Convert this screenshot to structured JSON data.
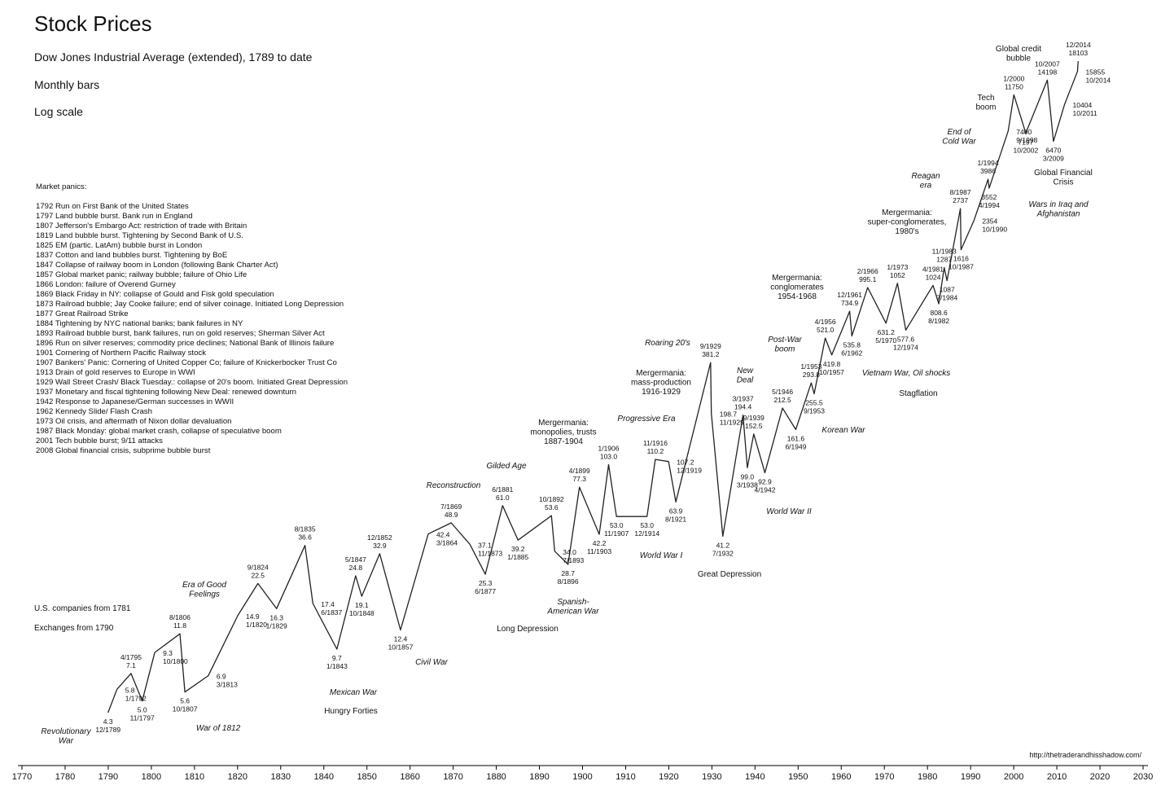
{
  "chart_data": {
    "type": "line",
    "title": "Stock Prices",
    "subtitle": "Dow Jones Industrial Average (extended), 1789 to date",
    "notes": [
      "Monthly bars",
      "Log scale"
    ],
    "log_scale": true,
    "color": "#222222",
    "xlim": [
      1770,
      2030
    ],
    "xticks": [
      1770,
      1780,
      1790,
      1800,
      1810,
      1820,
      1830,
      1840,
      1850,
      1860,
      1870,
      1880,
      1890,
      1900,
      1910,
      1920,
      1930,
      1940,
      1950,
      1960,
      1970,
      1980,
      1990,
      2000,
      2010,
      2020,
      2030
    ],
    "ylim": [
      2.3,
      23500
    ],
    "x": [
      1789.96,
      1792.04,
      1795.29,
      1797.88,
      1800.79,
      1806.63,
      1807.79,
      1813.21,
      1820.04,
      1824.71,
      1829.04,
      1835.63,
      1837.46,
      1843.04,
      1847.38,
      1848.79,
      1852.96,
      1857.79,
      1864.21,
      1869.54,
      1873.88,
      1877.46,
      1881.46,
      1885.04,
      1892.79,
      1893.54,
      1896.63,
      1899.29,
      1903.88,
      1906.04,
      1907.88,
      1914.96,
      1916.88,
      1919.96,
      1921.63,
      1929.71,
      1929.88,
      1932.54,
      1937.21,
      1938.21,
      1939.71,
      1942.29,
      1946.38,
      1949.46,
      1953.04,
      1953.71,
      1956.29,
      1957.79,
      1961.96,
      1962.46,
      1966.13,
      1970.38,
      1973.04,
      1974.96,
      1981.29,
      1982.63,
      1983.88,
      1984.54,
      1987.63,
      1987.79,
      1990.79,
      1994.04,
      1994.29,
      1998.71,
      2000.04,
      2002.79,
      2007.79,
      2009.21,
      2011.79,
      2014.79,
      2014.96
    ],
    "values": [
      4.3,
      5.8,
      7.1,
      5.0,
      9.3,
      11.8,
      5.6,
      6.9,
      14.9,
      22.5,
      16.3,
      36.6,
      17.4,
      9.7,
      24.8,
      19.1,
      32.9,
      12.4,
      42.4,
      48.9,
      37.1,
      25.3,
      61.0,
      39.2,
      53.6,
      34.0,
      28.7,
      77.3,
      42.2,
      103.0,
      53.0,
      53.0,
      110.2,
      107.2,
      63.9,
      381.2,
      198.7,
      41.2,
      194.4,
      99.0,
      152.5,
      92.9,
      212.5,
      161.6,
      293.8,
      255.5,
      521.0,
      419.8,
      734.9,
      535.8,
      995.1,
      631.2,
      1052,
      577.6,
      1024,
      808.6,
      1287,
      1087,
      2737,
      1616,
      2354,
      3986,
      3552,
      7400,
      11750,
      7197,
      14198,
      6470,
      10404,
      15855,
      18103
    ],
    "value_labels": [
      "4.3",
      "5.8",
      "7.1",
      "5.0",
      "9.3",
      "11.8",
      "5.6",
      "6.9",
      "14.9",
      "22.5",
      "16.3",
      "36.6",
      "17.4",
      "9.7",
      "24.8",
      "19.1",
      "32.9",
      "12.4",
      "42.4",
      "48.9",
      "37.1",
      "25.3",
      "61.0",
      "39.2",
      "53.6",
      "34.0",
      "28.7",
      "77.3",
      "42.2",
      "103.0",
      "53.0",
      "53.0",
      "110.2",
      "107.2",
      "63.9",
      "381.2",
      "198.7",
      "41.2",
      "194.4",
      "99.0",
      "152.5",
      "92.9",
      "212.5",
      "161.6",
      "293.8",
      "255.5",
      "521.0",
      "419.8",
      "734.9",
      "535.8",
      "995.1",
      "631.2",
      "1052",
      "577.6",
      "1024",
      "808.6",
      "1287",
      "1087",
      "2737",
      "1616",
      "2354",
      "3986",
      "3552",
      "7400",
      "11750",
      "7197",
      "14198",
      "6470",
      "10404",
      "15855",
      "18103"
    ],
    "date_labels": [
      "12/1789",
      "1/1792",
      "4/1795",
      "11/1797",
      "10/1800",
      "8/1806",
      "10/1807",
      "3/1813",
      "1/1820",
      "9/1824",
      "1/1829",
      "8/1835",
      "6/1837",
      "1/1843",
      "5/1847",
      "10/1848",
      "12/1852",
      "10/1857",
      "3/1864",
      "7/1869",
      "11/1873",
      "6/1877",
      "6/1881",
      "1/1885",
      "10/1892",
      "7/1893",
      "8/1896",
      "4/1899",
      "11/1903",
      "1/1906",
      "11/1907",
      "12/1914",
      "11/1916",
      "12/1919",
      "8/1921",
      "9/1929",
      "11/1929",
      "7/1932",
      "3/1937",
      "3/1938",
      "9/1939",
      "4/1942",
      "5/1946",
      "6/1949",
      "1/1953",
      "9/1953",
      "4/1956",
      "10/1957",
      "12/1961",
      "6/1962",
      "2/1966",
      "5/1970",
      "1/1973",
      "12/1974",
      "4/1981",
      "8/1982",
      "11/1983",
      "7/1984",
      "8/1987",
      "10/1987",
      "10/1990",
      "1/1994",
      "4/1994",
      "9/1998",
      "1/2000",
      "10/2002",
      "10/2007",
      "3/2009",
      "10/2011",
      "10/2014",
      "12/2014"
    ],
    "annotations_italic": [
      [
        "Revolutionary",
        "War"
      ],
      [
        "War of 1812"
      ],
      [
        "Era of Good",
        "Feelings"
      ],
      [
        "Mexican War"
      ],
      [
        "Civil War"
      ],
      [
        "Reconstruction"
      ],
      [
        "Gilded Age"
      ],
      [
        "Spanish-",
        "American War"
      ],
      [
        "World War I"
      ],
      [
        "Progressive Era"
      ],
      [
        "Roaring 20's"
      ],
      [
        "New",
        "Deal"
      ],
      [
        "World War II"
      ],
      [
        "Post-War",
        "boom"
      ],
      [
        "Korean War"
      ],
      [
        "Vietnam War, Oil shocks"
      ],
      [
        "Reagan",
        "era"
      ],
      [
        "End of",
        "Cold War"
      ],
      [
        "Wars in Iraq and",
        "Afghanistan"
      ]
    ],
    "annotations": [
      [
        "Hungry Forties"
      ],
      [
        "Long Depression"
      ],
      [
        "Mergermania:",
        "monopolies, trusts",
        "1887-1904"
      ],
      [
        "Mergermania:",
        "mass-production",
        "1916-1929"
      ],
      [
        "Great Depression"
      ],
      [
        "Mergermania:",
        "conglomerates",
        "1954-1968"
      ],
      [
        "Stagflation"
      ],
      [
        "Mergermania:",
        "super-conglomerates,",
        "1980's"
      ],
      [
        "Tech",
        "boom"
      ],
      [
        "Global credit",
        "bubble"
      ],
      [
        "Global Financial",
        "Crisis"
      ]
    ],
    "side_notes": [
      "U.S. companies from 1781",
      "Exchanges from 1790"
    ],
    "panics_title": "Market panics:",
    "panics": [
      "1792 Run on First Bank of the United States",
      "1797 Land bubble burst. Bank run in England",
      "1807 Jefferson's Embargo Act: restriction of trade with Britain",
      "1819 Land bubble burst. Tightening by Second Bank of U.S.",
      "1825 EM (partic. LatAm) bubble burst in London",
      "1837 Cotton and land bubbles burst. Tightening by BoE",
      "1847 Collapse of railway boom in London (following Bank Charter Act)",
      "1857 Global market panic; railway bubble; failure of Ohio Life",
      "1866 London: failure of Overend Gurney",
      "1869 Black Friday in NY: collapse of Gould and Fisk gold speculation",
      "1873 Railroad bubble; Jay Cooke failure; end of silver coinage. Initiated Long Depression",
      "1877 Great Railroad Strike",
      "1884 Tightening by NYC national banks; bank failures in NY",
      "1893 Railroad bubble burst, bank failures, run on gold reserves; Sherman Silver Act",
      "1896 Run on silver reserves; commodity price declines; National Bank of Illinois failure",
      "1901 Cornering of Northern Pacific Railway stock",
      "1907 Bankers' Panic: Cornering of United Copper Co; failure of Knickerbocker Trust Co",
      "1913 Drain of gold reserves to Europe in WWI",
      "1929 Wall Street Crash/ Black Tuesday.: collapse of 20's boom. Initiated Great Depression",
      "1937 Monetary and fiscal tightening following New Deal: renewed downturn",
      "1942 Response to Japanese/German successes in WWII",
      "1962 Kennedy Slide/ Flash Crash",
      "1973 Oil crisis, and aftermath of Nixon dollar devaluation",
      "1987 Black Monday: global market crash, collapse of speculative boom",
      "2001 Tech bubble burst; 9/11 attacks",
      "2008 Global financial crisis, subprime bubble burst"
    ],
    "source": "http://thetraderandhisshadow.com/"
  }
}
